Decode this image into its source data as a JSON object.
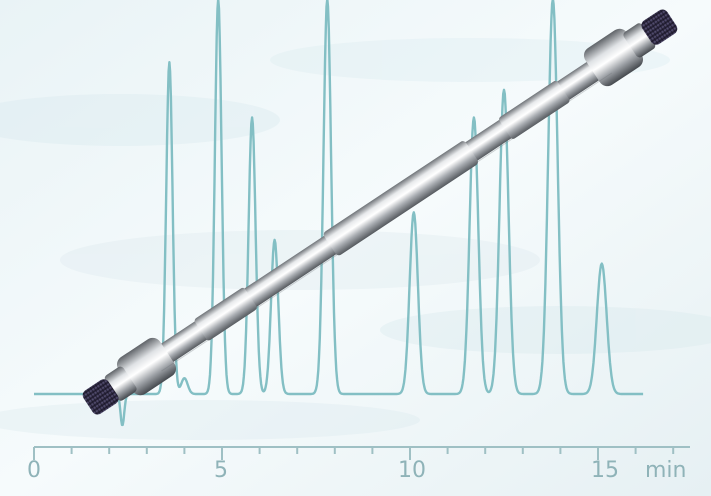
{
  "axis": {
    "tick_labels": [
      "0",
      "5",
      "10",
      "15"
    ],
    "unit": "min"
  },
  "colors": {
    "trace": "#83bfc4",
    "axis": "#9fc0c4",
    "paper": "#f2f8fa",
    "cap": "#2f2a44",
    "steel": "#b9bcc0"
  },
  "chromatogram": {
    "time_range": [
      0,
      17
    ],
    "peaks_min": [
      3.6,
      4.0,
      4.9,
      5.8,
      6.4,
      7.8,
      10.1,
      11.7,
      12.5,
      13.8,
      15.1
    ],
    "heights_rel": [
      0.84,
      0.04,
      1.0,
      0.7,
      0.39,
      1.0,
      0.46,
      0.7,
      0.77,
      1.0,
      0.33
    ]
  }
}
